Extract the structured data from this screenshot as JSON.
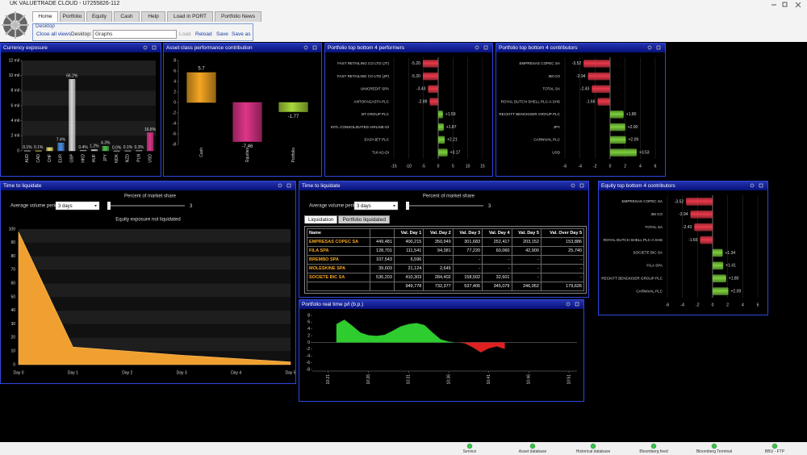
{
  "window": {
    "title": "UK VALUETRADE CLOUD - U7255826-112"
  },
  "tabs": [
    "Home",
    "Portfolio",
    "Equity",
    "Cash",
    "Help",
    "Load in PORT",
    "Portfolio News"
  ],
  "desktop": {
    "group": "Desktop",
    "close_all": "Close all views",
    "label": "Desktop:",
    "selected": "Graphs",
    "buttons": [
      "Load",
      "Reload",
      "Save",
      "Save as"
    ]
  },
  "chart_data": [
    {
      "type": "bar",
      "title": "Currency exposure",
      "categories": [
        "AUD",
        "CAD",
        "CHF",
        "EUR",
        "GBP",
        "HKD",
        "HUF",
        "JPY",
        "NOK",
        "NZD",
        "PLN",
        "USD"
      ],
      "values": [
        0.014,
        0.014,
        0.44,
        1.06,
        9.5,
        0.057,
        0.17,
        0.62,
        0.004,
        0.014,
        0.043,
        2.41
      ],
      "share_labels": [
        "0.1%",
        "0.1%",
        null,
        "7.4%",
        "66.2%",
        "0.4%",
        "1.2%",
        "4.3%",
        "0.0%",
        "0.1%",
        "0.3%",
        "16.8%"
      ],
      "colors": [
        "#bdbdbd",
        "#e8e070",
        "#e8e070",
        "#4a90e2",
        "#d9d9d9",
        "#bdbdbd",
        "#c8c8c8",
        "#4cc24c",
        "#bdbdbd",
        "#bdbdbd",
        "#bdbdbd",
        "#e0358a"
      ],
      "ylim": [
        0,
        12
      ],
      "yticks": [
        0,
        {
          "value": 2,
          "label": "2 mil"
        },
        {
          "value": 4,
          "label": "4 mil"
        },
        {
          "value": 6,
          "label": "6 mil"
        },
        {
          "value": 8,
          "label": "8 mil"
        },
        {
          "value": 10,
          "label": "10 mil"
        },
        {
          "value": 12,
          "label": "12 mil"
        }
      ],
      "grid": true
    },
    {
      "type": "bar",
      "title": "Asset class performance contribution",
      "categories": [
        "Cash",
        "Equities",
        "Portfolio"
      ],
      "values": [
        5.7,
        -7.46,
        -1.77
      ],
      "colors": [
        "#f5a623",
        "#e0358a",
        "#a8d83a"
      ],
      "ylim": [
        -8,
        8
      ],
      "yticks": [
        8,
        6,
        4,
        2,
        0,
        -2,
        -4,
        -6,
        -8
      ],
      "grid": false
    },
    {
      "type": "hbar",
      "title": "Portfolio top bottom 4 performers",
      "categories": [
        "FAST RETAILING CO LTD (JT)",
        "FAST RETAILING CO LTD (JP)",
        "UNICREDIT SPA",
        "ANTOFAGASTA PLC",
        "BT GROUP PLC",
        "INTL CONSOLIDATED AIRLINE-DI",
        "EASYJET PLC",
        "TUI AG-DI"
      ],
      "values": [
        -5.2,
        -5.2,
        -3.43,
        -2.89,
        1.59,
        1.87,
        2.21,
        3.17
      ],
      "value_labels": [
        "-5.20",
        "-5.20",
        "-3.43",
        "-2.89",
        "+1.59",
        "+1.87",
        "+2.21",
        "+3.17"
      ],
      "colors": {
        "negative": "#e8394a",
        "positive": "#7ccf3c"
      },
      "xlim": [
        -15,
        15
      ],
      "xticks": [
        -15,
        -10,
        -5,
        0,
        5,
        10,
        15
      ]
    },
    {
      "type": "hbar",
      "title": "Portfolio top bottom 4 contributors",
      "categories": [
        "EMPRESAS COPEC SA",
        "3M CO",
        "TOTAL SA",
        "ROYAL DUTCH SHELL PLC-A SHS",
        "RECKITT BENCKISER GROUP PLC",
        "JPY",
        "CARNIVAL PLC",
        "USD"
      ],
      "values": [
        -3.52,
        -2.94,
        -2.43,
        -1.66,
        1.8,
        2,
        2.09,
        3.53
      ],
      "value_labels": [
        "-3.52",
        "-2.94",
        "-2.43",
        "-1.66",
        "+1.80",
        "+2.00",
        "+2.09",
        "+3.53"
      ],
      "colors": {
        "negative": "#e8394a",
        "positive": "#7ccf3c"
      },
      "xlim": [
        -6,
        6
      ],
      "xticks": [
        -6,
        -4,
        -2,
        0,
        2,
        4,
        6
      ]
    },
    {
      "type": "hbar",
      "title": "Equity top bottom 4 contributors",
      "categories": [
        "EMPRESAS COPEC SA",
        "3M CO",
        "TOTAL SA",
        "ROYAL DUTCH SHELL PLC-A SHS",
        "SOCIETE BIC SA",
        "FILA SPA",
        "RECKITT BENCKISER GROUP PLC",
        "CARNIVAL PLC"
      ],
      "values": [
        -3.52,
        -2.94,
        -2.43,
        -1.66,
        1.34,
        1.41,
        1.8,
        2.09
      ],
      "value_labels": [
        "-3.52",
        "-2.94",
        "-2.43",
        "-1.66",
        "+1.34",
        "+1.41",
        "+1.80",
        "+2.09"
      ],
      "colors": {
        "negative": "#e8394a",
        "positive": "#7ccf3c"
      },
      "xlim": [
        -6,
        6
      ],
      "xticks": [
        -6,
        -4,
        -2,
        0,
        2,
        4,
        6
      ]
    },
    {
      "type": "area",
      "title": "Time to liquidate",
      "period_label": "Average volume period:",
      "period": "3 days",
      "slider_value": 3,
      "share_label": "Percent of market share",
      "subtitle": "Equity exposure not liquidated",
      "categories": [
        "Day 0",
        "Day 1",
        "Day 2",
        "Day 3",
        "Day 4",
        "Day 5"
      ],
      "values": [
        98,
        13,
        10,
        7,
        4.5,
        2
      ],
      "color": "#f0a030",
      "ylim": [
        0,
        100
      ],
      "yticks": [
        0,
        10,
        20,
        30,
        40,
        50,
        60,
        70,
        80,
        90,
        100
      ],
      "grid": true
    },
    {
      "type": "line",
      "title": "Portfolio real time p/l (b.p.)",
      "x": [
        622,
        623,
        624,
        625,
        626,
        627,
        628,
        629,
        630,
        631,
        632,
        633,
        634,
        635,
        636,
        637,
        638,
        639,
        640,
        641,
        642,
        643
      ],
      "values": [
        5.5,
        6.8,
        5,
        3,
        2.2,
        2,
        2.3,
        3.5,
        4.8,
        5.5,
        5.8,
        5.2,
        3,
        1,
        0.3,
        0,
        -0.3,
        -1.5,
        -3,
        -1.8,
        -1.2,
        -2
      ],
      "colors": {
        "positive": "#2ecc2e",
        "negative": "#e02020"
      },
      "xlim": [
        619,
        652
      ],
      "xticks": [
        {
          "value": 621,
          "label": "10:21"
        },
        {
          "value": 626,
          "label": "10:26"
        },
        {
          "value": 631,
          "label": "10:31"
        },
        {
          "value": 636,
          "label": "10:36"
        },
        {
          "value": 641,
          "label": "10:41"
        },
        {
          "value": 646,
          "label": "10:46"
        },
        {
          "value": 651,
          "label": "10:51"
        }
      ],
      "ylim": [
        -8,
        8
      ],
      "yticks": [
        8,
        6,
        4,
        2,
        0,
        -2,
        -4,
        -6,
        -8
      ]
    }
  ],
  "liquidation_table": {
    "title": "Time to liquidate",
    "period_label": "Average volume period:",
    "period": "3 days",
    "slider_value": 3,
    "share_label": "Percent of market share",
    "tabs": [
      "Liquidation",
      "Portfolio liquidated"
    ],
    "columns": [
      "Name",
      null,
      "Val. Day 1",
      "Val. Day 2",
      "Val. Day 3",
      "Val. Day 4",
      "Val. Day 5",
      "Val. Over Day 5"
    ],
    "rows": [
      [
        "EMPRESAS COPEC SA",
        "449,481",
        "400,215",
        "350,949",
        "301,683",
        "252,417",
        "203,152",
        "153,886"
      ],
      [
        "FILA SPA",
        "128,701",
        "111,541",
        "94,381",
        "77,220",
        "60,060",
        "42,900",
        "25,740"
      ],
      [
        "BREMBO SPA",
        "107,543",
        "6,596",
        "-",
        "-",
        "-",
        "-",
        "-"
      ],
      [
        "MOLESKINE SPA",
        "39,603",
        "21,124",
        "2,645",
        "-",
        "-",
        "-",
        "-"
      ],
      [
        "SOCIETE BIC SA",
        "536,203",
        "410,303",
        "284,402",
        "158,502",
        "32,601",
        "-",
        "-"
      ]
    ],
    "totals": [
      null,
      null,
      "949,778",
      "732,377",
      "537,405",
      "345,079",
      "246,052",
      "179,626"
    ]
  },
  "status": [
    "Service",
    "Asset database",
    "Historical database",
    "Bloomberg feed",
    "Bloomberg Terminal",
    "BBU - FTP"
  ]
}
